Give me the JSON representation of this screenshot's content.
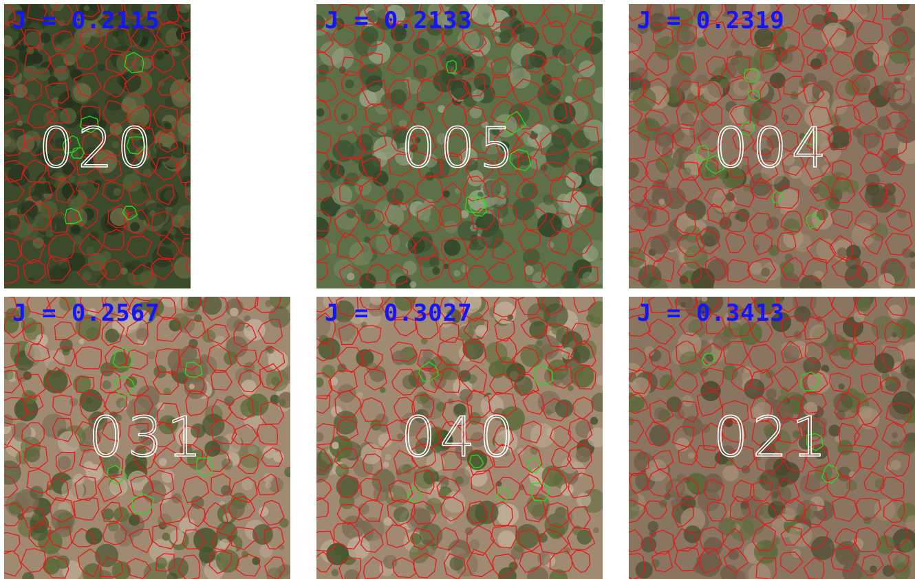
{
  "panels": [
    {
      "j_label": "J = 0.2115",
      "tile_id": "020",
      "tone": "dark-green"
    },
    {
      "j_label": "J = 0.2133",
      "tile_id": "005",
      "tone": "green"
    },
    {
      "j_label": "J = 0.2319",
      "tile_id": "004",
      "tone": "brown"
    },
    {
      "j_label": "J = 0.2567",
      "tile_id": "031",
      "tone": "tan"
    },
    {
      "j_label": "J = 0.3027",
      "tile_id": "040",
      "tone": "tan"
    },
    {
      "j_label": "J = 0.3413",
      "tile_id": "021",
      "tone": "brown"
    }
  ],
  "colors": {
    "j_label": "#1414ff",
    "tile_id": "#ffffff",
    "predicted_outline": "#e81818",
    "ground_truth_outline": "#22dd22"
  }
}
